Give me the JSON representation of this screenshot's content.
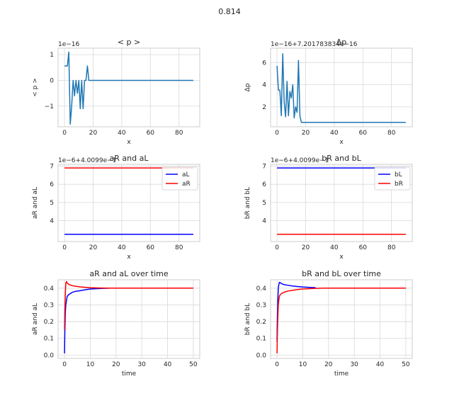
{
  "figure": {
    "suptitle": "0.814"
  },
  "chart_data": [
    {
      "type": "line",
      "title": "< p >",
      "xlabel": "x",
      "ylabel": "< p >",
      "offset_text": "1e−16",
      "xlim": [
        -4.5,
        94.5
      ],
      "ylim": [
        -1.8,
        1.25
      ],
      "xticks": [
        0,
        20,
        40,
        60,
        80
      ],
      "yticks": [
        -1,
        0,
        1
      ],
      "ytick_labels": [
        "−1",
        "0",
        "1"
      ],
      "grid": true,
      "series": [
        {
          "name": "",
          "color": "#1f77b4",
          "x": [
            0,
            1,
            2,
            3,
            4,
            5,
            6,
            7,
            8,
            9,
            10,
            11,
            12,
            13,
            14,
            15,
            16,
            17,
            18,
            90
          ],
          "y": [
            0.56,
            0.56,
            0.56,
            1.1,
            -1.7,
            -1.0,
            0.0,
            -0.6,
            0.0,
            -0.5,
            0.0,
            -1.1,
            0.0,
            -1.1,
            0.0,
            0.0,
            0.56,
            0.0,
            0.0,
            0.0
          ]
        }
      ]
    },
    {
      "type": "line",
      "title": "Δp",
      "xlabel": "x",
      "ylabel": "Δp",
      "offset_text": "1e−16+7.201783834e−16",
      "xlim": [
        -4.5,
        94.5
      ],
      "ylim": [
        0.2,
        7.3
      ],
      "xticks": [
        0,
        20,
        40,
        60,
        80
      ],
      "yticks": [
        2,
        4,
        6
      ],
      "grid": true,
      "series": [
        {
          "name": "",
          "color": "#1f77b4",
          "x": [
            0,
            1,
            2,
            3,
            4,
            5,
            6,
            7,
            8,
            9,
            10,
            11,
            12,
            13,
            14,
            15,
            16,
            17,
            18,
            90
          ],
          "y": [
            5.7,
            3.5,
            3.5,
            1.2,
            6.8,
            2.4,
            1.1,
            4.3,
            1.2,
            3.4,
            2.8,
            4.0,
            1.0,
            2.0,
            1.5,
            6.2,
            1.2,
            0.6,
            0.6,
            0.6
          ]
        }
      ]
    },
    {
      "type": "line",
      "title": "aR and aL",
      "xlabel": "x",
      "ylabel": "aR and aL",
      "offset_text": "1e−6+4.0099e−1",
      "xlim": [
        -4.5,
        94.5
      ],
      "ylim": [
        2.85,
        7.1
      ],
      "xticks": [
        0,
        20,
        40,
        60,
        80
      ],
      "yticks": [
        4,
        5,
        6,
        7
      ],
      "grid": true,
      "legend": "upper-right",
      "series": [
        {
          "name": "aL",
          "color": "#0000ff",
          "x": [
            0,
            90
          ],
          "y": [
            3.25,
            3.25
          ]
        },
        {
          "name": "aR",
          "color": "#ff0000",
          "x": [
            0,
            90
          ],
          "y": [
            6.9,
            6.9
          ]
        }
      ]
    },
    {
      "type": "line",
      "title": "bR and bL",
      "xlabel": "x",
      "ylabel": "bR and bL",
      "offset_text": "1e−6+4.0099e−1",
      "xlim": [
        -4.5,
        94.5
      ],
      "ylim": [
        2.85,
        7.1
      ],
      "xticks": [
        0,
        20,
        40,
        60,
        80
      ],
      "yticks": [
        4,
        5,
        6,
        7
      ],
      "grid": true,
      "legend": "upper-right",
      "series": [
        {
          "name": "bL",
          "color": "#0000ff",
          "x": [
            0,
            90
          ],
          "y": [
            6.9,
            6.9
          ]
        },
        {
          "name": "bR",
          "color": "#ff0000",
          "x": [
            0,
            90
          ],
          "y": [
            3.25,
            3.25
          ]
        }
      ]
    },
    {
      "type": "line",
      "title": "aR and aL over time",
      "xlabel": "time",
      "ylabel": "aR and aL",
      "xlim": [
        -2.5,
        52.5
      ],
      "ylim": [
        -0.02,
        0.45
      ],
      "xticks": [
        0,
        10,
        20,
        30,
        40,
        50
      ],
      "yticks": [
        0.0,
        0.1,
        0.2,
        0.3,
        0.4
      ],
      "ytick_labels": [
        "0.0",
        "0.1",
        "0.2",
        "0.3",
        "0.4"
      ],
      "grid": true,
      "series": [
        {
          "name": "",
          "color": "#0000ff",
          "x": [
            0,
            0.1,
            0.3,
            0.5,
            0.8,
            1,
            1.5,
            2,
            3,
            4,
            6,
            8,
            10,
            14,
            18,
            22
          ],
          "y": [
            0.01,
            0.12,
            0.25,
            0.3,
            0.33,
            0.35,
            0.36,
            0.365,
            0.375,
            0.38,
            0.385,
            0.39,
            0.395,
            0.398,
            0.4,
            0.4
          ]
        },
        {
          "name": "",
          "color": "#ff0000",
          "x": [
            0,
            0.1,
            0.3,
            0.5,
            0.8,
            1,
            1.5,
            2,
            3,
            4,
            6,
            8,
            10,
            14,
            18,
            22,
            30,
            40,
            50
          ],
          "y": [
            0.15,
            0.25,
            0.36,
            0.43,
            0.44,
            0.43,
            0.425,
            0.42,
            0.415,
            0.412,
            0.408,
            0.405,
            0.403,
            0.401,
            0.4,
            0.4,
            0.4,
            0.4,
            0.4
          ]
        }
      ]
    },
    {
      "type": "line",
      "title": "bR and bL over time",
      "xlabel": "time",
      "ylabel": "bR and bL",
      "xlim": [
        -2.5,
        52.5
      ],
      "ylim": [
        -0.02,
        0.45
      ],
      "xticks": [
        0,
        10,
        20,
        30,
        40,
        50
      ],
      "yticks": [
        0.0,
        0.1,
        0.2,
        0.3,
        0.4
      ],
      "ytick_labels": [
        "0.0",
        "0.1",
        "0.2",
        "0.3",
        "0.4"
      ],
      "grid": true,
      "series": [
        {
          "name": "",
          "color": "#0000ff",
          "x": [
            0,
            0.1,
            0.3,
            0.5,
            0.8,
            1,
            1.5,
            2,
            3,
            4,
            6,
            8,
            10,
            12,
            15
          ],
          "y": [
            0.08,
            0.2,
            0.32,
            0.4,
            0.43,
            0.435,
            0.43,
            0.425,
            0.42,
            0.418,
            0.413,
            0.41,
            0.407,
            0.405,
            0.403
          ]
        },
        {
          "name": "",
          "color": "#ff0000",
          "x": [
            0,
            0.1,
            0.3,
            0.5,
            0.8,
            1,
            1.5,
            2,
            3,
            4,
            6,
            8,
            10,
            14,
            18,
            22,
            30,
            40,
            50
          ],
          "y": [
            0.01,
            0.1,
            0.22,
            0.3,
            0.34,
            0.355,
            0.365,
            0.37,
            0.377,
            0.382,
            0.387,
            0.392,
            0.395,
            0.398,
            0.4,
            0.4,
            0.4,
            0.4,
            0.4
          ]
        }
      ]
    }
  ]
}
